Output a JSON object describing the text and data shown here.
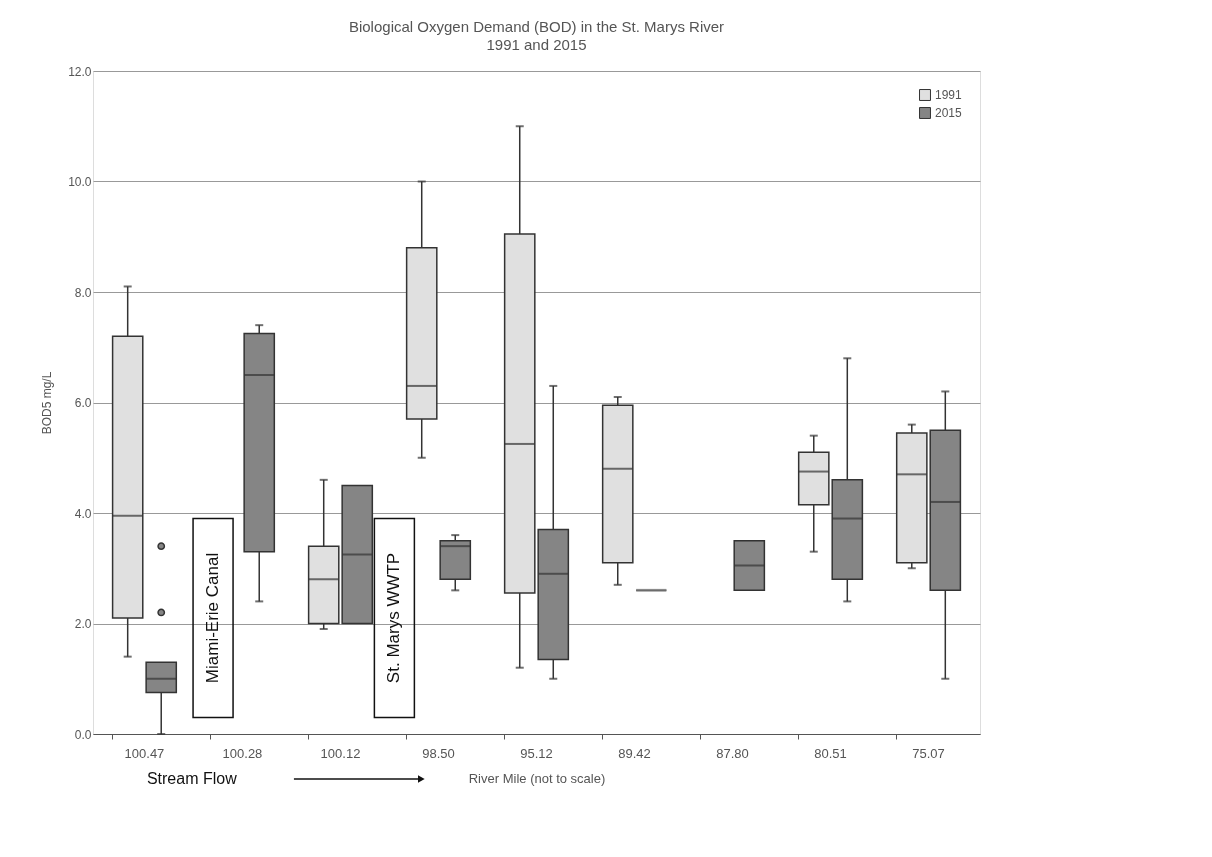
{
  "chart_data": {
    "type": "box",
    "title": "Biological Oxygen Demand (BOD) in the St. Marys River",
    "subtitle": "1991 and 2015",
    "xlabel": "River Mile (not to scale)",
    "ylabel": "BOD5 mg/L",
    "categories": [
      "100.47",
      "100.28",
      "100.12",
      "98.50",
      "95.12",
      "89.42",
      "87.80",
      "80.51",
      "75.07"
    ],
    "ylim": [
      0,
      12
    ],
    "yticks": [
      {
        "value": 0,
        "label": "0.0"
      },
      {
        "value": 2,
        "label": "2.0"
      },
      {
        "value": 4,
        "label": "4.0"
      },
      {
        "value": 6,
        "label": "6.0"
      },
      {
        "value": 8,
        "label": "8.0"
      },
      {
        "value": 10,
        "label": "10.0"
      },
      {
        "value": 12,
        "label": "12.0"
      }
    ],
    "grid": "y",
    "legend": "top right",
    "annotations": [
      "Miami-Erie Canal",
      "St. Marys WWTP",
      "Stream Flow"
    ],
    "series": [
      {
        "name": "1991",
        "color": "#e0e0e0",
        "boxes": [
          {
            "low": 1.4,
            "q1": 2.1,
            "median": 3.95,
            "q3": 7.2,
            "high": 8.1
          },
          null,
          {
            "low": 1.9,
            "q1": 2.0,
            "median": 2.8,
            "q3": 3.4,
            "high": 4.6
          },
          {
            "low": 5.0,
            "q1": 5.7,
            "median": 6.3,
            "q3": 8.8,
            "high": 10.0
          },
          {
            "low": 1.2,
            "q1": 2.55,
            "median": 5.25,
            "q3": 9.05,
            "high": 11.0
          },
          {
            "low": 2.7,
            "q1": 3.1,
            "median": 4.8,
            "q3": 5.95,
            "high": 6.1
          },
          null,
          {
            "low": 3.3,
            "q1": 4.15,
            "median": 4.75,
            "q3": 5.1,
            "high": 5.4
          },
          {
            "low": 3.0,
            "q1": 3.1,
            "median": 4.7,
            "q3": 5.45,
            "high": 5.6
          }
        ]
      },
      {
        "name": "2015",
        "color": "#858585",
        "boxes": [
          {
            "low": 0.0,
            "q1": 0.75,
            "median": 1.0,
            "q3": 1.3,
            "high": 1.3,
            "outliers": [
              2.2,
              3.4
            ]
          },
          {
            "low": 2.4,
            "q1": 3.3,
            "median": 6.5,
            "q3": 7.25,
            "high": 7.4
          },
          {
            "low": 2.0,
            "q1": 2.0,
            "median": 3.25,
            "q3": 4.5,
            "high": 4.5
          },
          {
            "low": 2.6,
            "q1": 2.8,
            "median": 3.4,
            "q3": 3.5,
            "high": 3.6
          },
          {
            "low": 1.0,
            "q1": 1.35,
            "median": 2.9,
            "q3": 3.7,
            "high": 6.3
          },
          {
            "low": 2.6,
            "q1": 2.6,
            "median": 2.6,
            "q3": 2.6,
            "high": 2.6
          },
          {
            "low": 2.6,
            "q1": 2.6,
            "median": 3.05,
            "q3": 3.5,
            "high": 3.5
          },
          {
            "low": 2.4,
            "q1": 2.8,
            "median": 3.9,
            "q3": 4.6,
            "high": 6.8
          },
          {
            "low": 1.0,
            "q1": 2.6,
            "median": 4.2,
            "q3": 5.5,
            "high": 6.2
          }
        ]
      }
    ]
  }
}
